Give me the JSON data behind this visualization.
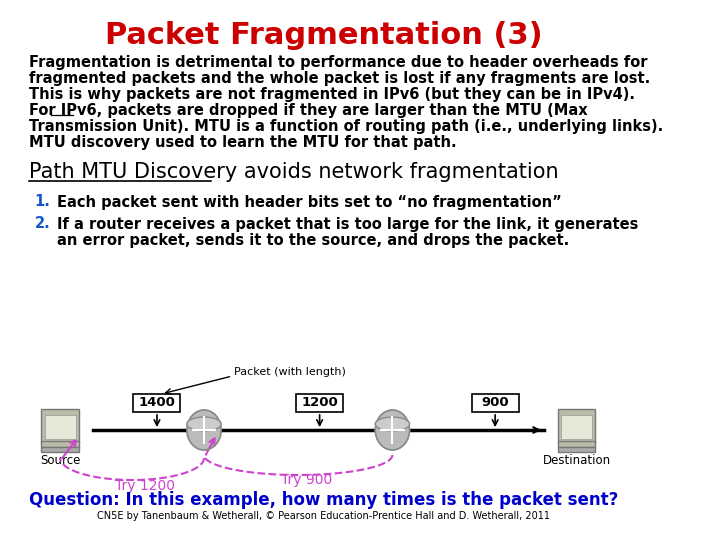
{
  "title": "Packet Fragmentation (3)",
  "title_color": "#cc0000",
  "title_fontsize": 22,
  "bg_color": "#ffffff",
  "body_lines": [
    "Fragmentation is detrimental to performance due to header overheads for",
    "fragmented packets and the whole packet is lost if any fragments are lost.",
    "This is why packets are not fragmented in IPv6 (but they can be in IPv4).",
    "For IPv6, packets are dropped if they are larger than the MTU (Max",
    "Transmission Unit). MTU is a function of routing path (i.e., underlying links).",
    "MTU discovery used to learn the MTU for that path."
  ],
  "body_fontsize": 10.5,
  "subtitle": "Path MTU Discovery avoids network fragmentation",
  "subtitle_fontsize": 15,
  "item1": "Each packet sent with header bits set to “no fragmentation”",
  "item2a": "If a router receives a packet that is too large for the link, it generates",
  "item2b": "an error packet, sends it to the source, and drops the packet.",
  "item_fontsize": 10.5,
  "question": "Question: In this example, how many times is the packet sent?",
  "question_color": "#0000cc",
  "question_fontsize": 12,
  "copyright": "CN5E by Tanenbaum & Wetherall, © Pearson Education-Prentice Hall and D. Wetherall, 2011",
  "copyright_fontsize": 7,
  "packet_label": "Packet (with length)",
  "pkt1_val": "1400",
  "pkt2_val": "1200",
  "pkt3_val": "900",
  "try1_label": "Try 1200",
  "try2_label": "Try 900",
  "try_color": "#cc44cc",
  "source_label": "Source",
  "dest_label": "Destination",
  "num_color": "#1155cc"
}
